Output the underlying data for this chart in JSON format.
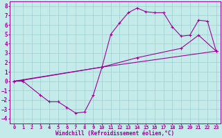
{
  "xlabel": "Windchill (Refroidissement éolien,°C)",
  "xlim": [
    -0.5,
    23.5
  ],
  "ylim": [
    -4.5,
    8.5
  ],
  "x_ticks": [
    0,
    1,
    2,
    3,
    4,
    5,
    6,
    7,
    8,
    9,
    10,
    11,
    12,
    13,
    14,
    15,
    16,
    17,
    18,
    19,
    20,
    21,
    22,
    23
  ],
  "y_ticks": [
    -4,
    -3,
    -2,
    -1,
    0,
    1,
    2,
    3,
    4,
    5,
    6,
    7,
    8
  ],
  "bg_color": "#c5eaea",
  "grid_color": "#9ecfcf",
  "line_color": "#990099",
  "curve1_x": [
    0,
    1,
    3,
    4,
    5,
    6,
    7,
    8,
    9,
    10,
    11,
    12,
    13,
    14,
    15,
    16,
    17,
    18,
    19,
    20,
    21,
    22,
    23
  ],
  "curve1_y": [
    0,
    0,
    -1.5,
    -2.2,
    -2.2,
    -2.8,
    -3.4,
    -3.3,
    -1.5,
    1.5,
    5,
    6.2,
    7.3,
    7.8,
    7.4,
    7.3,
    7.3,
    5.8,
    4.8,
    4.9,
    6.5,
    6.4,
    3.2
  ],
  "curve2_x": [
    0,
    10,
    23
  ],
  "curve2_y": [
    0,
    1.5,
    3.2
  ],
  "curve3_x": [
    0,
    1,
    10,
    14,
    19,
    21,
    23
  ],
  "curve3_y": [
    0,
    0.1,
    1.5,
    2.5,
    3.5,
    4.9,
    3.2
  ]
}
